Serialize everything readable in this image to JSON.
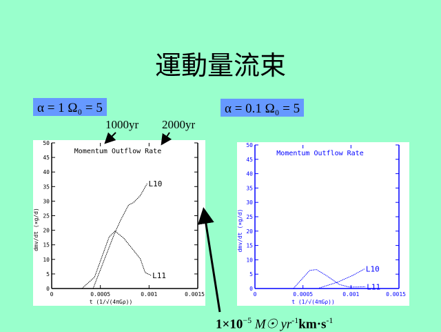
{
  "slide": {
    "title": "運動量流束",
    "left_param": "α = 1  Ω₀ = 5",
    "right_param": "α = 0.1  Ω₀ = 5",
    "label_1000": "1000yr",
    "label_2000": "2000yr",
    "unit_main": "1×10",
    "unit_exp": "−5",
    "unit_rest": "M☉ yr",
    "unit_exp2": "-1",
    "unit_tail": "km·s",
    "unit_exp3": "-1"
  },
  "chart_data": [
    {
      "type": "line",
      "title": "Momentum Outflow Rate",
      "xlabel": "t (1/√(4πGρ))",
      "ylabel": "dmv/dt (×g/d)",
      "xlim": [
        0,
        0.0015
      ],
      "ylim": [
        0,
        50
      ],
      "xticks": [
        "0",
        "0.0005",
        "0.001",
        "0.0015"
      ],
      "yticks": [
        "0",
        "5",
        "10",
        "15",
        "20",
        "25",
        "30",
        "35",
        "40",
        "45",
        "50"
      ],
      "color": "#000000",
      "series": [
        {
          "name": "L10",
          "x": [
            0.000425,
            0.00065,
            0.00071,
            0.00079,
            0.00084,
            0.00091,
            0.00098
          ],
          "y": [
            0,
            19.3,
            23.6,
            28.7,
            29.5,
            31.9,
            36
          ]
        },
        {
          "name": "L11",
          "x": [
            0.00031,
            0.00044,
            0.00059,
            0.00065,
            0.00074,
            0.00091,
            0.00096,
            0.00102
          ],
          "y": [
            0,
            3.9,
            17.7,
            19.7,
            17.3,
            10.2,
            5.5,
            4.5
          ]
        }
      ]
    },
    {
      "type": "line",
      "title": "Momentum Outflow Rate",
      "xlabel": "t (1/√(4πGρ))",
      "ylabel": "dmv/dt (×g/d)",
      "xlim": [
        0,
        0.0015
      ],
      "ylim": [
        0,
        50
      ],
      "xticks": [
        "0",
        "0.0005",
        "0.001",
        "0.0015"
      ],
      "yticks": [
        "0",
        "5",
        "10",
        "15",
        "20",
        "25",
        "30",
        "35",
        "40",
        "45",
        "50"
      ],
      "color": "#0000ff",
      "series": [
        {
          "name": "L10",
          "x": [
            0.00067,
            0.00086,
            0.00102,
            0.00114
          ],
          "y": [
            0.2,
            2.2,
            4.6,
            6.8
          ]
        },
        {
          "name": "L11",
          "x": [
            0.0004,
            0.00057,
            0.00064,
            0.00074,
            0.00088,
            0.00098,
            0.00115
          ],
          "y": [
            0,
            6.3,
            6.6,
            4.6,
            1.4,
            0.5,
            0.6
          ]
        }
      ]
    }
  ]
}
